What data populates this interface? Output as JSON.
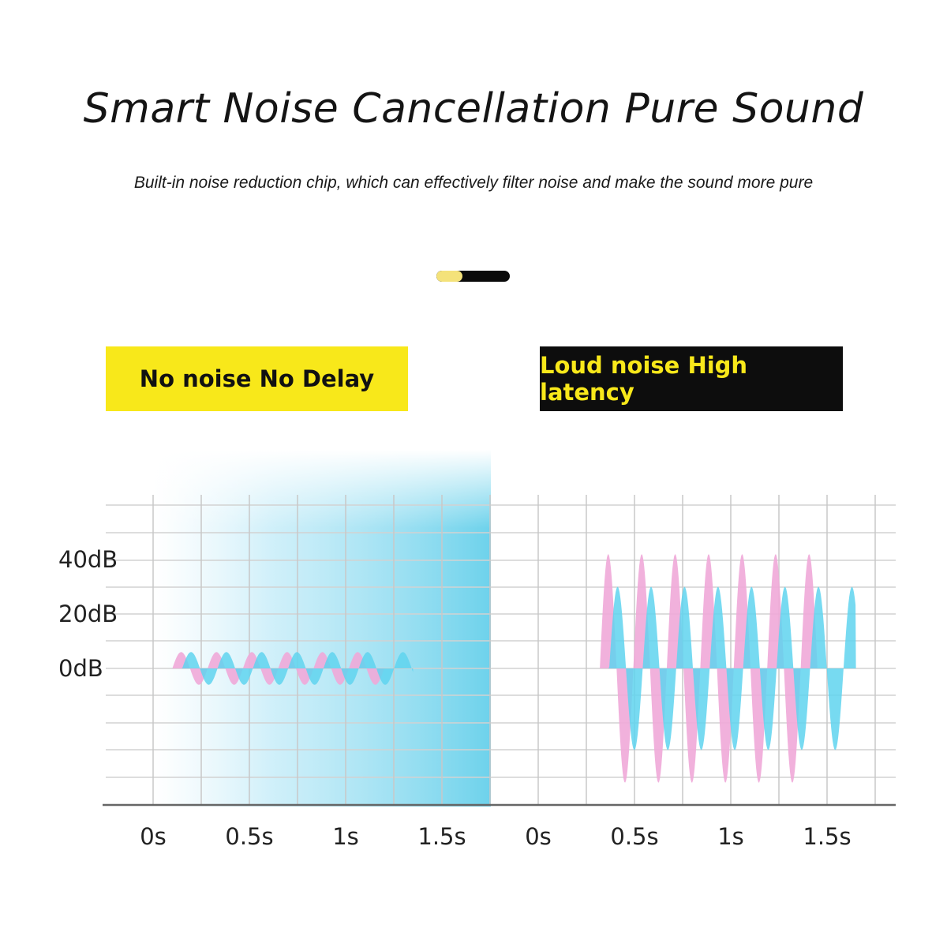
{
  "header": {
    "title": "Smart Noise Cancellation Pure Sound",
    "subtitle": "Built-in noise reduction chip, which can effectively filter noise and make the sound more pure"
  },
  "indicator": {
    "accent_color": "#f4e27a",
    "track_color": "#0a0a0a",
    "level": 0.35
  },
  "colors": {
    "pink": "#f0a8d8",
    "blue": "#5fd3ee",
    "yellow": "#f8e81a",
    "black": "#0d0d0d"
  },
  "chart_data": [
    {
      "type": "area",
      "label": "No noise No Delay",
      "y_ticks": [
        "40dB",
        "20dB",
        "0dB"
      ],
      "x_ticks": [
        "0s",
        "0.5s",
        "1s",
        "1.5s"
      ],
      "grid": true,
      "series": [
        {
          "color": "#f0a8d8",
          "amplitude_db": 6,
          "start_s": 0.1,
          "end_s": 1.2,
          "cycles": 6
        },
        {
          "color": "#5fd3ee",
          "amplitude_db": 6,
          "start_s": 0.1,
          "end_s": 1.35,
          "cycles": 6
        }
      ]
    },
    {
      "type": "area",
      "label": "Loud noise High latency",
      "x_ticks": [
        "0s",
        "0.5s",
        "1s",
        "1.5s"
      ],
      "grid": true,
      "series": [
        {
          "color": "#f0a8d8",
          "amplitude_db": 42,
          "start_s": 0.32,
          "end_s": 1.45,
          "cycles": 6.5
        },
        {
          "color": "#5fd3ee",
          "amplitude_db": 30,
          "start_s": 0.32,
          "end_s": 1.65,
          "cycles": 6.5
        }
      ]
    }
  ]
}
